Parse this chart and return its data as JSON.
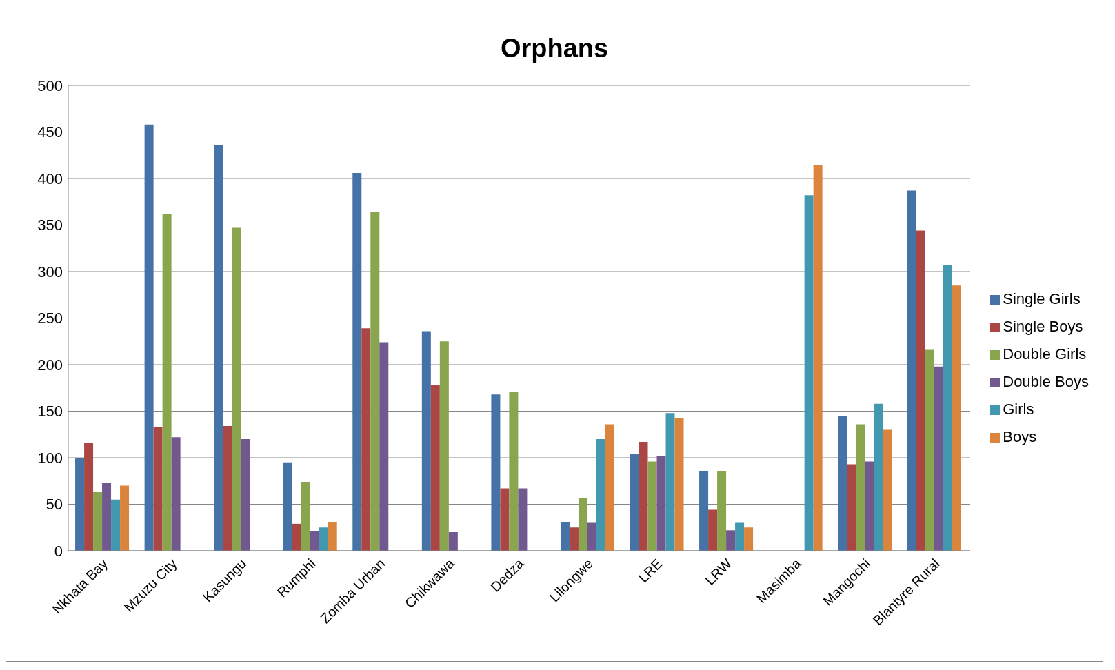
{
  "chart_data": {
    "type": "bar",
    "title": "Orphans",
    "categories": [
      "Nkhata Bay",
      "Mzuzu City",
      "Kasungu",
      "Rumphi",
      "Zomba Urban",
      "Chikwawa",
      "Dedza",
      "Lilongwe",
      "LRE",
      "LRW",
      "Masimba",
      "Mangochi",
      "Blantyre Rural"
    ],
    "series": [
      {
        "name": "Single Girls",
        "color": "#4572a7",
        "values": [
          100,
          458,
          436,
          95,
          406,
          236,
          168,
          31,
          104,
          86,
          null,
          145,
          387
        ]
      },
      {
        "name": "Single Boys",
        "color": "#aa4643",
        "values": [
          116,
          133,
          134,
          29,
          239,
          178,
          67,
          25,
          117,
          44,
          null,
          93,
          344
        ]
      },
      {
        "name": "Double Girls",
        "color": "#89a54e",
        "values": [
          63,
          362,
          347,
          74,
          364,
          225,
          171,
          57,
          96,
          86,
          null,
          136,
          216
        ]
      },
      {
        "name": "Double Boys",
        "color": "#71588f",
        "values": [
          73,
          122,
          120,
          21,
          224,
          20,
          67,
          30,
          102,
          22,
          null,
          96,
          198
        ]
      },
      {
        "name": "Girls",
        "color": "#4198af",
        "values": [
          55,
          null,
          null,
          25,
          null,
          null,
          null,
          120,
          148,
          30,
          382,
          158,
          307
        ]
      },
      {
        "name": "Boys",
        "color": "#db843d",
        "values": [
          70,
          null,
          null,
          31,
          null,
          null,
          null,
          136,
          143,
          25,
          414,
          130,
          285
        ]
      }
    ],
    "ylim": [
      0,
      500
    ],
    "yticks": [
      0,
      50,
      100,
      150,
      200,
      250,
      300,
      350,
      400,
      450,
      500
    ],
    "grid": "y",
    "legend": "right"
  }
}
